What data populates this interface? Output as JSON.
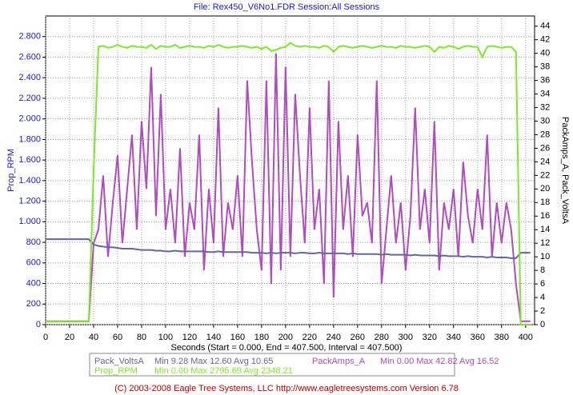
{
  "chart_data": {
    "type": "line",
    "title": "File: Rex450_V6No1.FDR   Session:All Sessions",
    "x_label": "Seconds (Start = 0.000,  End = 407.500,  Interval = 407.500)",
    "y_label": "Prop_RPM",
    "y2_label": "PackAmps_A, Pack_VoltsA",
    "footer": "(C) 2003-2008 Eagle Tree Systems, LLC      http://www.eagletreesystems.com      Version 6.78",
    "grid": true,
    "xlim": [
      0,
      407.5
    ],
    "xticks": [
      0,
      20,
      40,
      60,
      80,
      100,
      120,
      140,
      160,
      180,
      200,
      220,
      240,
      260,
      280,
      300,
      320,
      340,
      360,
      380,
      400
    ],
    "ylim": [
      0,
      3000
    ],
    "yticks": [
      0,
      200,
      400,
      600,
      800,
      {
        "value": 1000,
        "label": "1.000"
      },
      {
        "value": 1200,
        "label": "1.200"
      },
      {
        "value": 1400,
        "label": "1.400"
      },
      {
        "value": 1600,
        "label": "1.600"
      },
      {
        "value": 1800,
        "label": "1.800"
      },
      {
        "value": 2000,
        "label": "2.000"
      },
      {
        "value": 2200,
        "label": "2.200"
      },
      {
        "value": 2400,
        "label": "2.400"
      },
      {
        "value": 2600,
        "label": "2.600"
      },
      {
        "value": 2800,
        "label": "2.800"
      }
    ],
    "y2lim": [
      0,
      45.5
    ],
    "y2ticks": [
      0,
      2,
      4,
      6,
      8,
      10,
      12,
      14,
      16,
      18,
      20,
      22,
      24,
      26,
      28,
      30,
      32,
      34,
      36,
      38,
      40,
      42,
      44
    ],
    "x": [
      0,
      4,
      8,
      12,
      16,
      20,
      24,
      28,
      32,
      36,
      40,
      44,
      48,
      52,
      56,
      60,
      64,
      68,
      72,
      76,
      80,
      84,
      88,
      92,
      96,
      100,
      104,
      108,
      112,
      116,
      120,
      124,
      128,
      132,
      136,
      140,
      144,
      148,
      152,
      156,
      160,
      164,
      168,
      172,
      176,
      180,
      184,
      188,
      192,
      196,
      200,
      204,
      208,
      212,
      216,
      220,
      224,
      228,
      232,
      236,
      240,
      244,
      248,
      252,
      256,
      260,
      264,
      268,
      272,
      276,
      280,
      284,
      288,
      292,
      296,
      300,
      304,
      308,
      312,
      316,
      320,
      324,
      328,
      332,
      336,
      340,
      344,
      348,
      352,
      356,
      360,
      364,
      368,
      372,
      376,
      380,
      384,
      388,
      392,
      396,
      400,
      404
    ],
    "series": [
      {
        "name": "PackAmps_A",
        "stats": "Min 0.00    Max 42.82    Avg 16.52",
        "color": "#b04cc0",
        "axis": "y2",
        "values": [
          0.5,
          0.5,
          0.5,
          0.5,
          0.5,
          0.5,
          0.5,
          0.5,
          0.5,
          0.5,
          12,
          14,
          22,
          10,
          18,
          25,
          12,
          20,
          28,
          14,
          30,
          20,
          38,
          16,
          34,
          14,
          20,
          12,
          26,
          10,
          18,
          14,
          28,
          8,
          20,
          12,
          32,
          10,
          18,
          14,
          22,
          10,
          36,
          24,
          14,
          8,
          36,
          6,
          40,
          8,
          38,
          10,
          34,
          22,
          12,
          32,
          14,
          20,
          6,
          36,
          4,
          30,
          14,
          22,
          10,
          28,
          16,
          18,
          12,
          36,
          6,
          14,
          22,
          12,
          18,
          8,
          16,
          32,
          14,
          20,
          12,
          30,
          8,
          18,
          14,
          20,
          10,
          24,
          16,
          12,
          20,
          14,
          28,
          10,
          18,
          12,
          18,
          14,
          6,
          0.5,
          0.5,
          0.5
        ]
      },
      {
        "name": "Pack_VoltsA",
        "stats": "Min 9.28    Max 12.60    Avg 10.65",
        "color": "#66669a",
        "axis": "y2",
        "values": [
          12.6,
          12.6,
          12.6,
          12.6,
          12.6,
          12.6,
          12.6,
          12.6,
          12.6,
          12.6,
          11.8,
          11.6,
          11.5,
          11.4,
          11.4,
          11.3,
          11.2,
          11.2,
          11.2,
          11.1,
          11.0,
          11.0,
          11.0,
          10.9,
          10.9,
          10.8,
          10.8,
          10.9,
          10.8,
          10.8,
          10.8,
          10.8,
          10.8,
          10.8,
          10.7,
          10.7,
          10.8,
          10.7,
          10.7,
          10.7,
          10.7,
          10.7,
          10.7,
          10.6,
          10.6,
          10.6,
          10.5,
          10.6,
          10.5,
          10.6,
          10.6,
          10.6,
          10.5,
          10.6,
          10.6,
          10.5,
          10.5,
          10.6,
          10.5,
          10.5,
          10.5,
          10.5,
          10.5,
          10.4,
          10.5,
          10.4,
          10.4,
          10.4,
          10.4,
          10.4,
          10.3,
          10.4,
          10.3,
          10.3,
          10.3,
          10.3,
          10.2,
          10.3,
          10.2,
          10.2,
          10.2,
          10.2,
          10.1,
          10.2,
          10.1,
          10.1,
          10.1,
          10.0,
          10.1,
          10.0,
          10.0,
          10.0,
          9.9,
          10.0,
          9.9,
          9.9,
          9.9,
          9.8,
          9.8,
          10.6,
          10.6,
          10.6
        ]
      },
      {
        "name": "Prop_RPM",
        "stats": "Min 0.00    Max 2795.69    Avg 2348.21",
        "color": "#7ee82a",
        "axis": "y",
        "values": [
          30,
          30,
          30,
          30,
          30,
          30,
          30,
          30,
          30,
          30,
          1500,
          2700,
          2710,
          2690,
          2700,
          2720,
          2700,
          2690,
          2710,
          2700,
          2700,
          2690,
          2720,
          2680,
          2710,
          2700,
          2700,
          2720,
          2690,
          2700,
          2710,
          2700,
          2700,
          2690,
          2710,
          2700,
          2720,
          2700,
          2690,
          2700,
          2700,
          2710,
          2700,
          2690,
          2700,
          2680,
          2700,
          2660,
          2670,
          2690,
          2700,
          2740,
          2710,
          2700,
          2710,
          2700,
          2700,
          2690,
          2710,
          2700,
          2650,
          2700,
          2710,
          2700,
          2690,
          2700,
          2710,
          2700,
          2690,
          2700,
          2710,
          2700,
          2700,
          2690,
          2710,
          2700,
          2700,
          2690,
          2700,
          2710,
          2700,
          2650,
          2700,
          2690,
          2710,
          2700,
          2680,
          2700,
          2710,
          2700,
          2700,
          2600,
          2700,
          2710,
          2700,
          2690,
          2700,
          2700,
          2650,
          0,
          0,
          0
        ]
      }
    ]
  }
}
